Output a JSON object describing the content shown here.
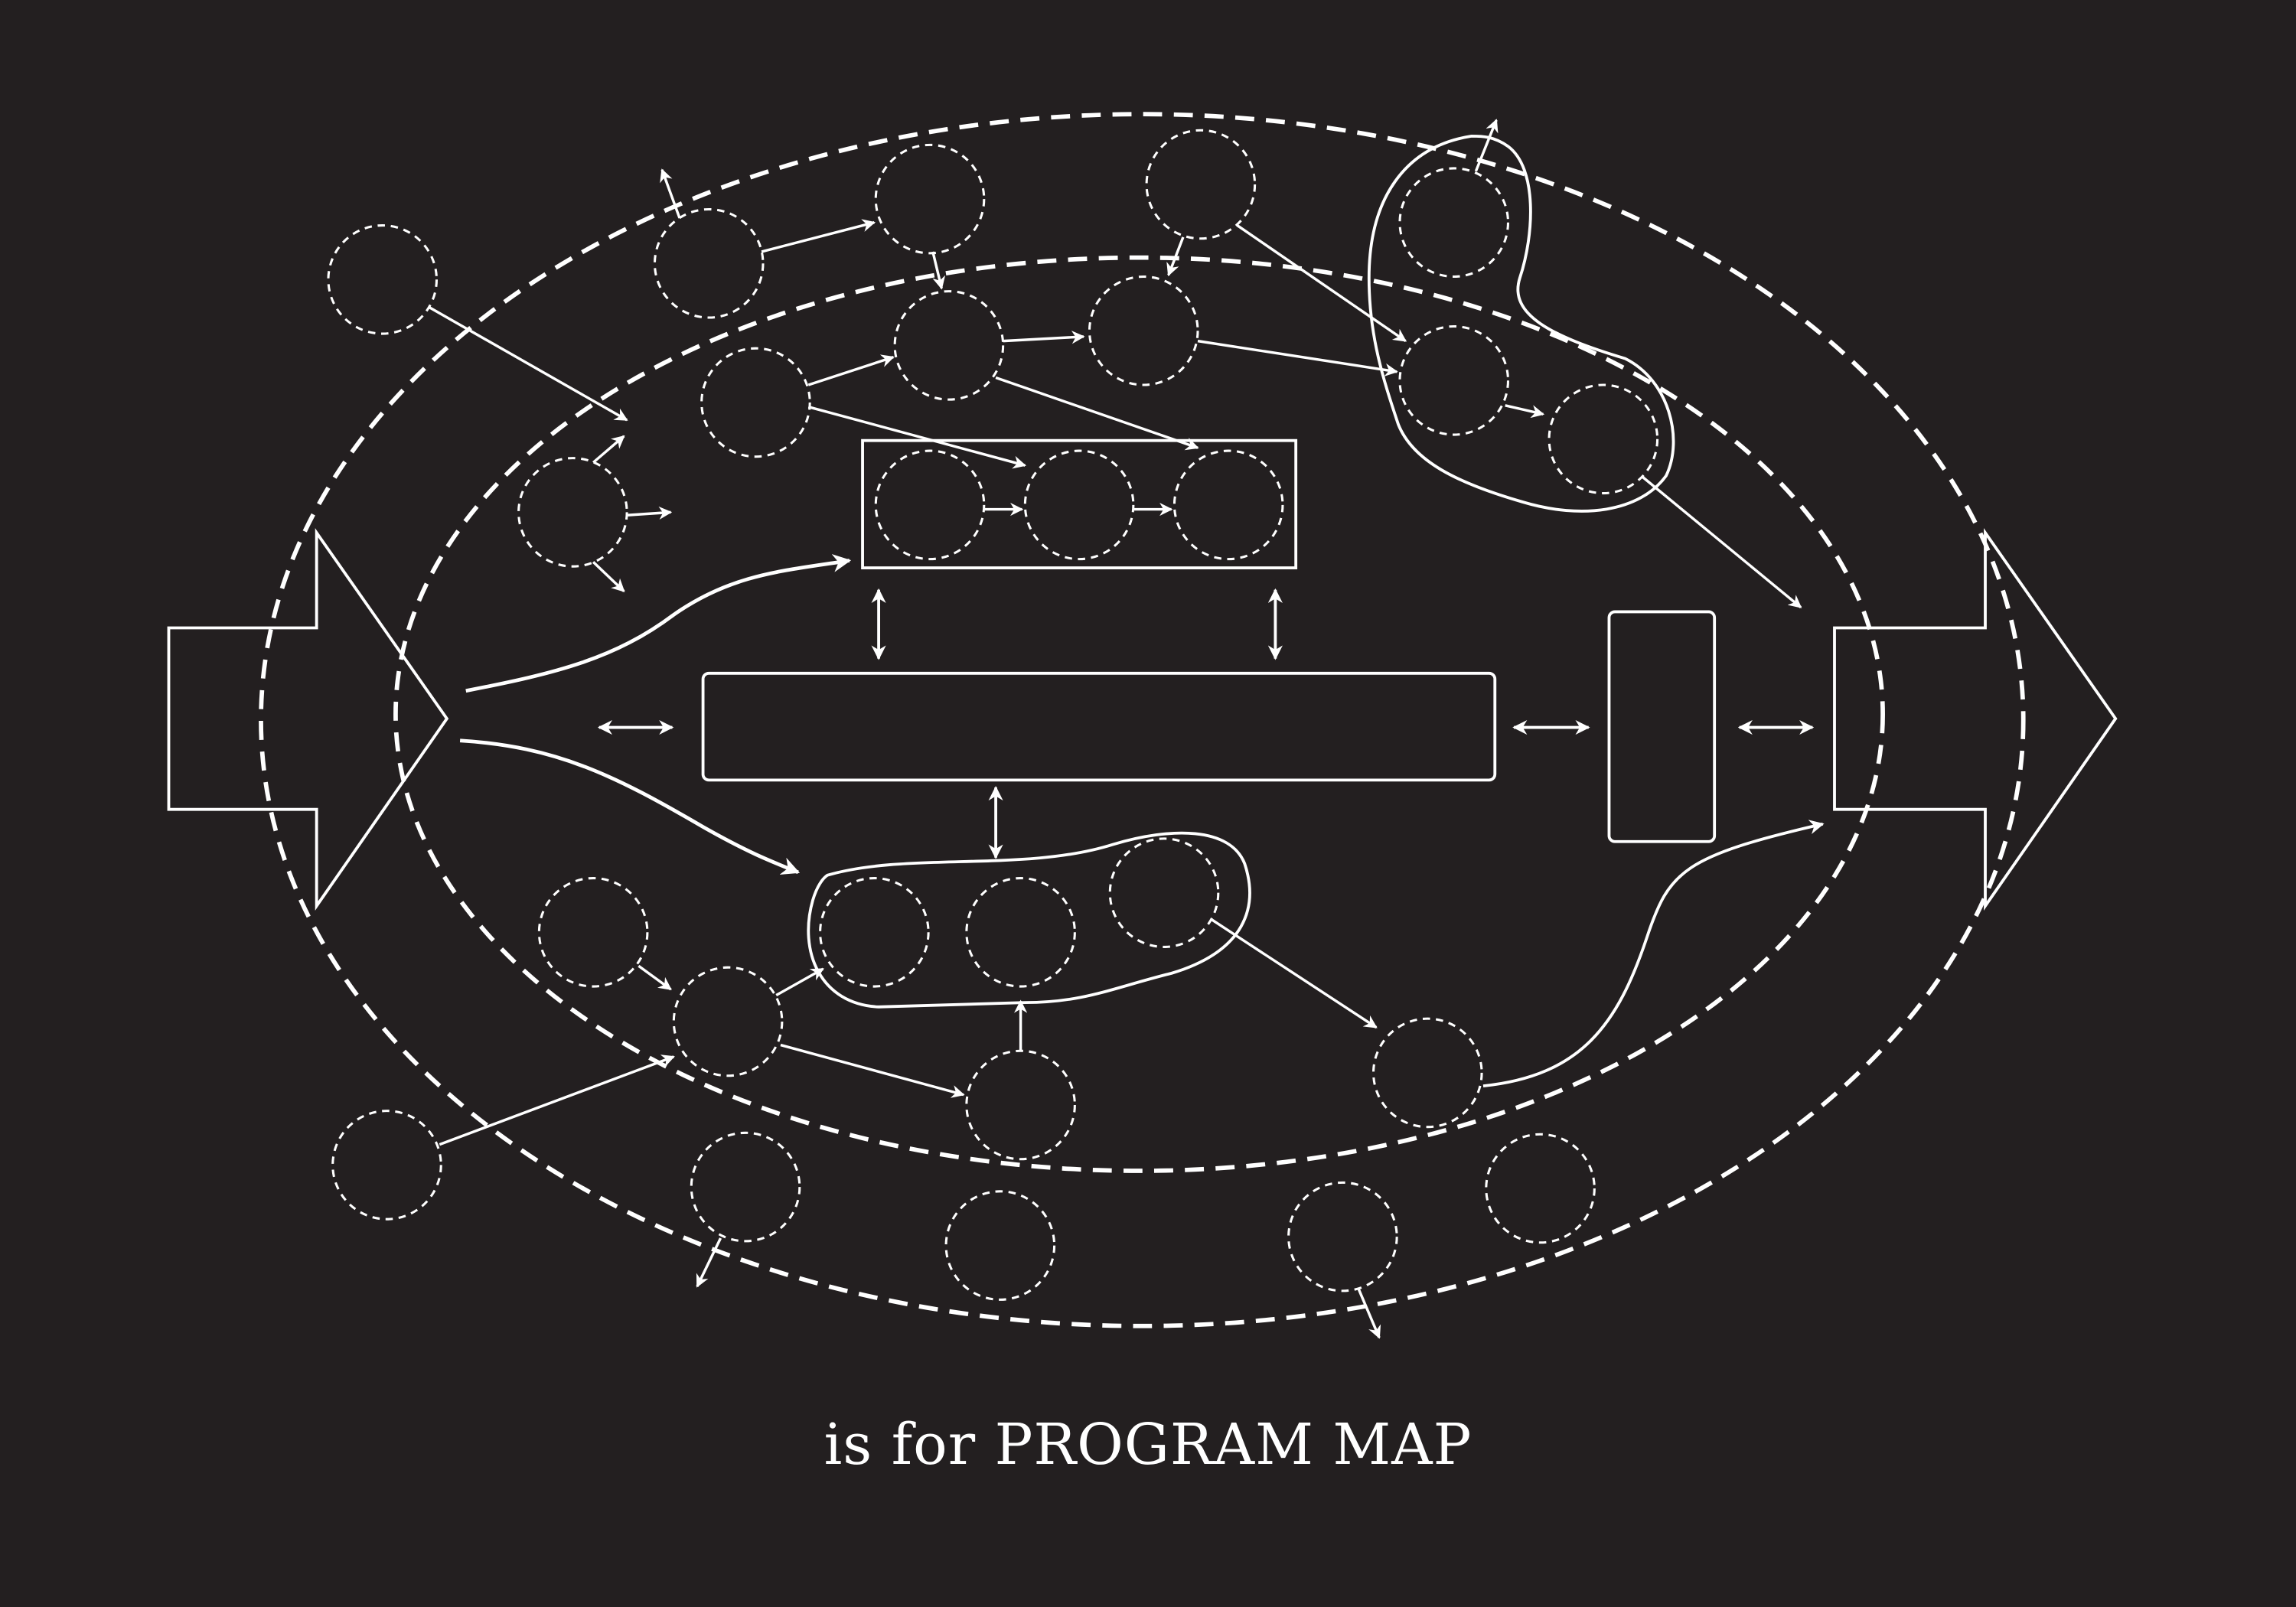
{
  "caption": {
    "lead": "is for",
    "title": "PROGRAM MAP"
  },
  "colors": {
    "background": "#231f20",
    "stroke": "#ffffff"
  }
}
